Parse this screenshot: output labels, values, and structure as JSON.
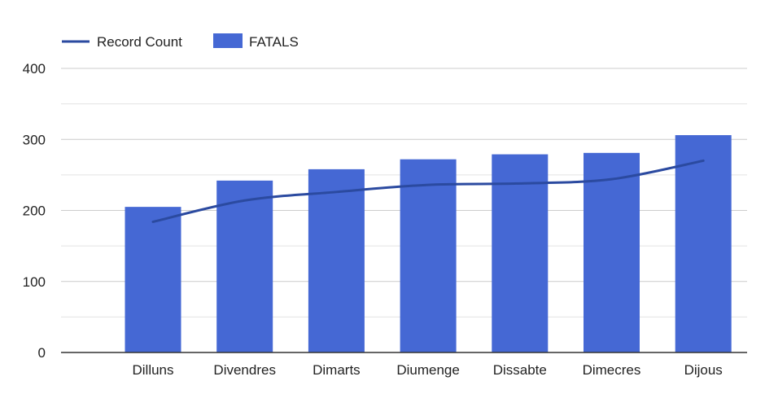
{
  "chart_data": {
    "type": "bar",
    "categories": [
      "Dilluns",
      "Divendres",
      "Dimarts",
      "Diumenge",
      "Dissabte",
      "Dimecres",
      "Dijous"
    ],
    "series": [
      {
        "name": "FATALS",
        "type": "bar",
        "color": "#4568d4",
        "values": [
          205,
          242,
          258,
          272,
          279,
          281,
          306
        ]
      },
      {
        "name": "Record Count",
        "type": "line",
        "color": "#2b4aa0",
        "values": [
          184,
          214,
          226,
          236,
          238,
          244,
          270
        ]
      }
    ],
    "ylim": [
      0,
      400
    ],
    "yticks": [
      0,
      100,
      200,
      300,
      400
    ],
    "grid": true,
    "legend_position": "top-left"
  }
}
